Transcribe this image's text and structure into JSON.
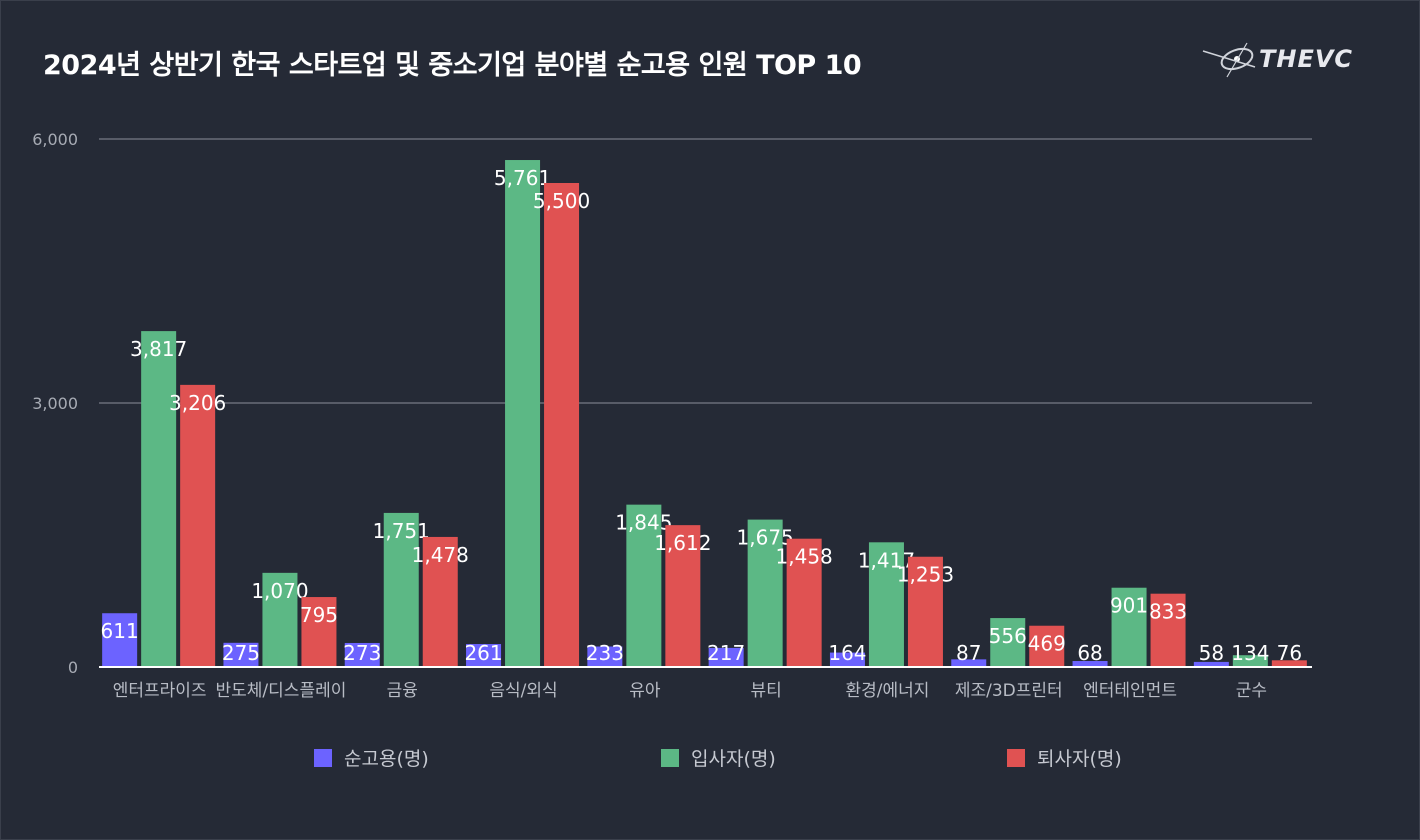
{
  "logo": {
    "text": "THEVC"
  },
  "chart_data": {
    "type": "bar",
    "title": "2024년 상반기 한국 스타트업 및 중소기업  분야별 순고용 인원 TOP 10",
    "categories": [
      "엔터프라이즈",
      "반도체/디스플레이",
      "금융",
      "음식/외식",
      "유아",
      "뷰티",
      "환경/에너지",
      "제조/3D프린터",
      "엔터테인먼트",
      "군수"
    ],
    "series": [
      {
        "name": "순고용(명)",
        "color": "#6c63ff",
        "values": [
          611,
          275,
          273,
          261,
          233,
          217,
          164,
          87,
          68,
          58
        ],
        "labels": [
          "611",
          "275",
          "273",
          "261",
          "233",
          "217",
          "164",
          "87",
          "68",
          "58"
        ]
      },
      {
        "name": "입사자(명)",
        "color": "#5cb885",
        "values": [
          3817,
          1070,
          1751,
          5761,
          1845,
          1675,
          1417,
          556,
          901,
          134
        ],
        "labels": [
          "3,817",
          "1,070",
          "1,751",
          "5,761",
          "1,845",
          "1,675",
          "1,417",
          "556",
          "901",
          "134"
        ]
      },
      {
        "name": "퇴사자(명)",
        "color": "#e05252",
        "values": [
          3206,
          795,
          1478,
          5500,
          1612,
          1458,
          1253,
          469,
          833,
          76
        ],
        "labels": [
          "3,206",
          "795",
          "1,478",
          "5,500",
          "1,612",
          "1,458",
          "1,253",
          "469",
          "833",
          "76"
        ]
      }
    ],
    "yticks": [
      0,
      3000,
      6000
    ],
    "ytick_labels": [
      "0",
      "3,000",
      "6,000"
    ],
    "ylim": [
      0,
      6000
    ],
    "xlabel": "",
    "ylabel": "",
    "grid": true,
    "legend": "bottom"
  }
}
